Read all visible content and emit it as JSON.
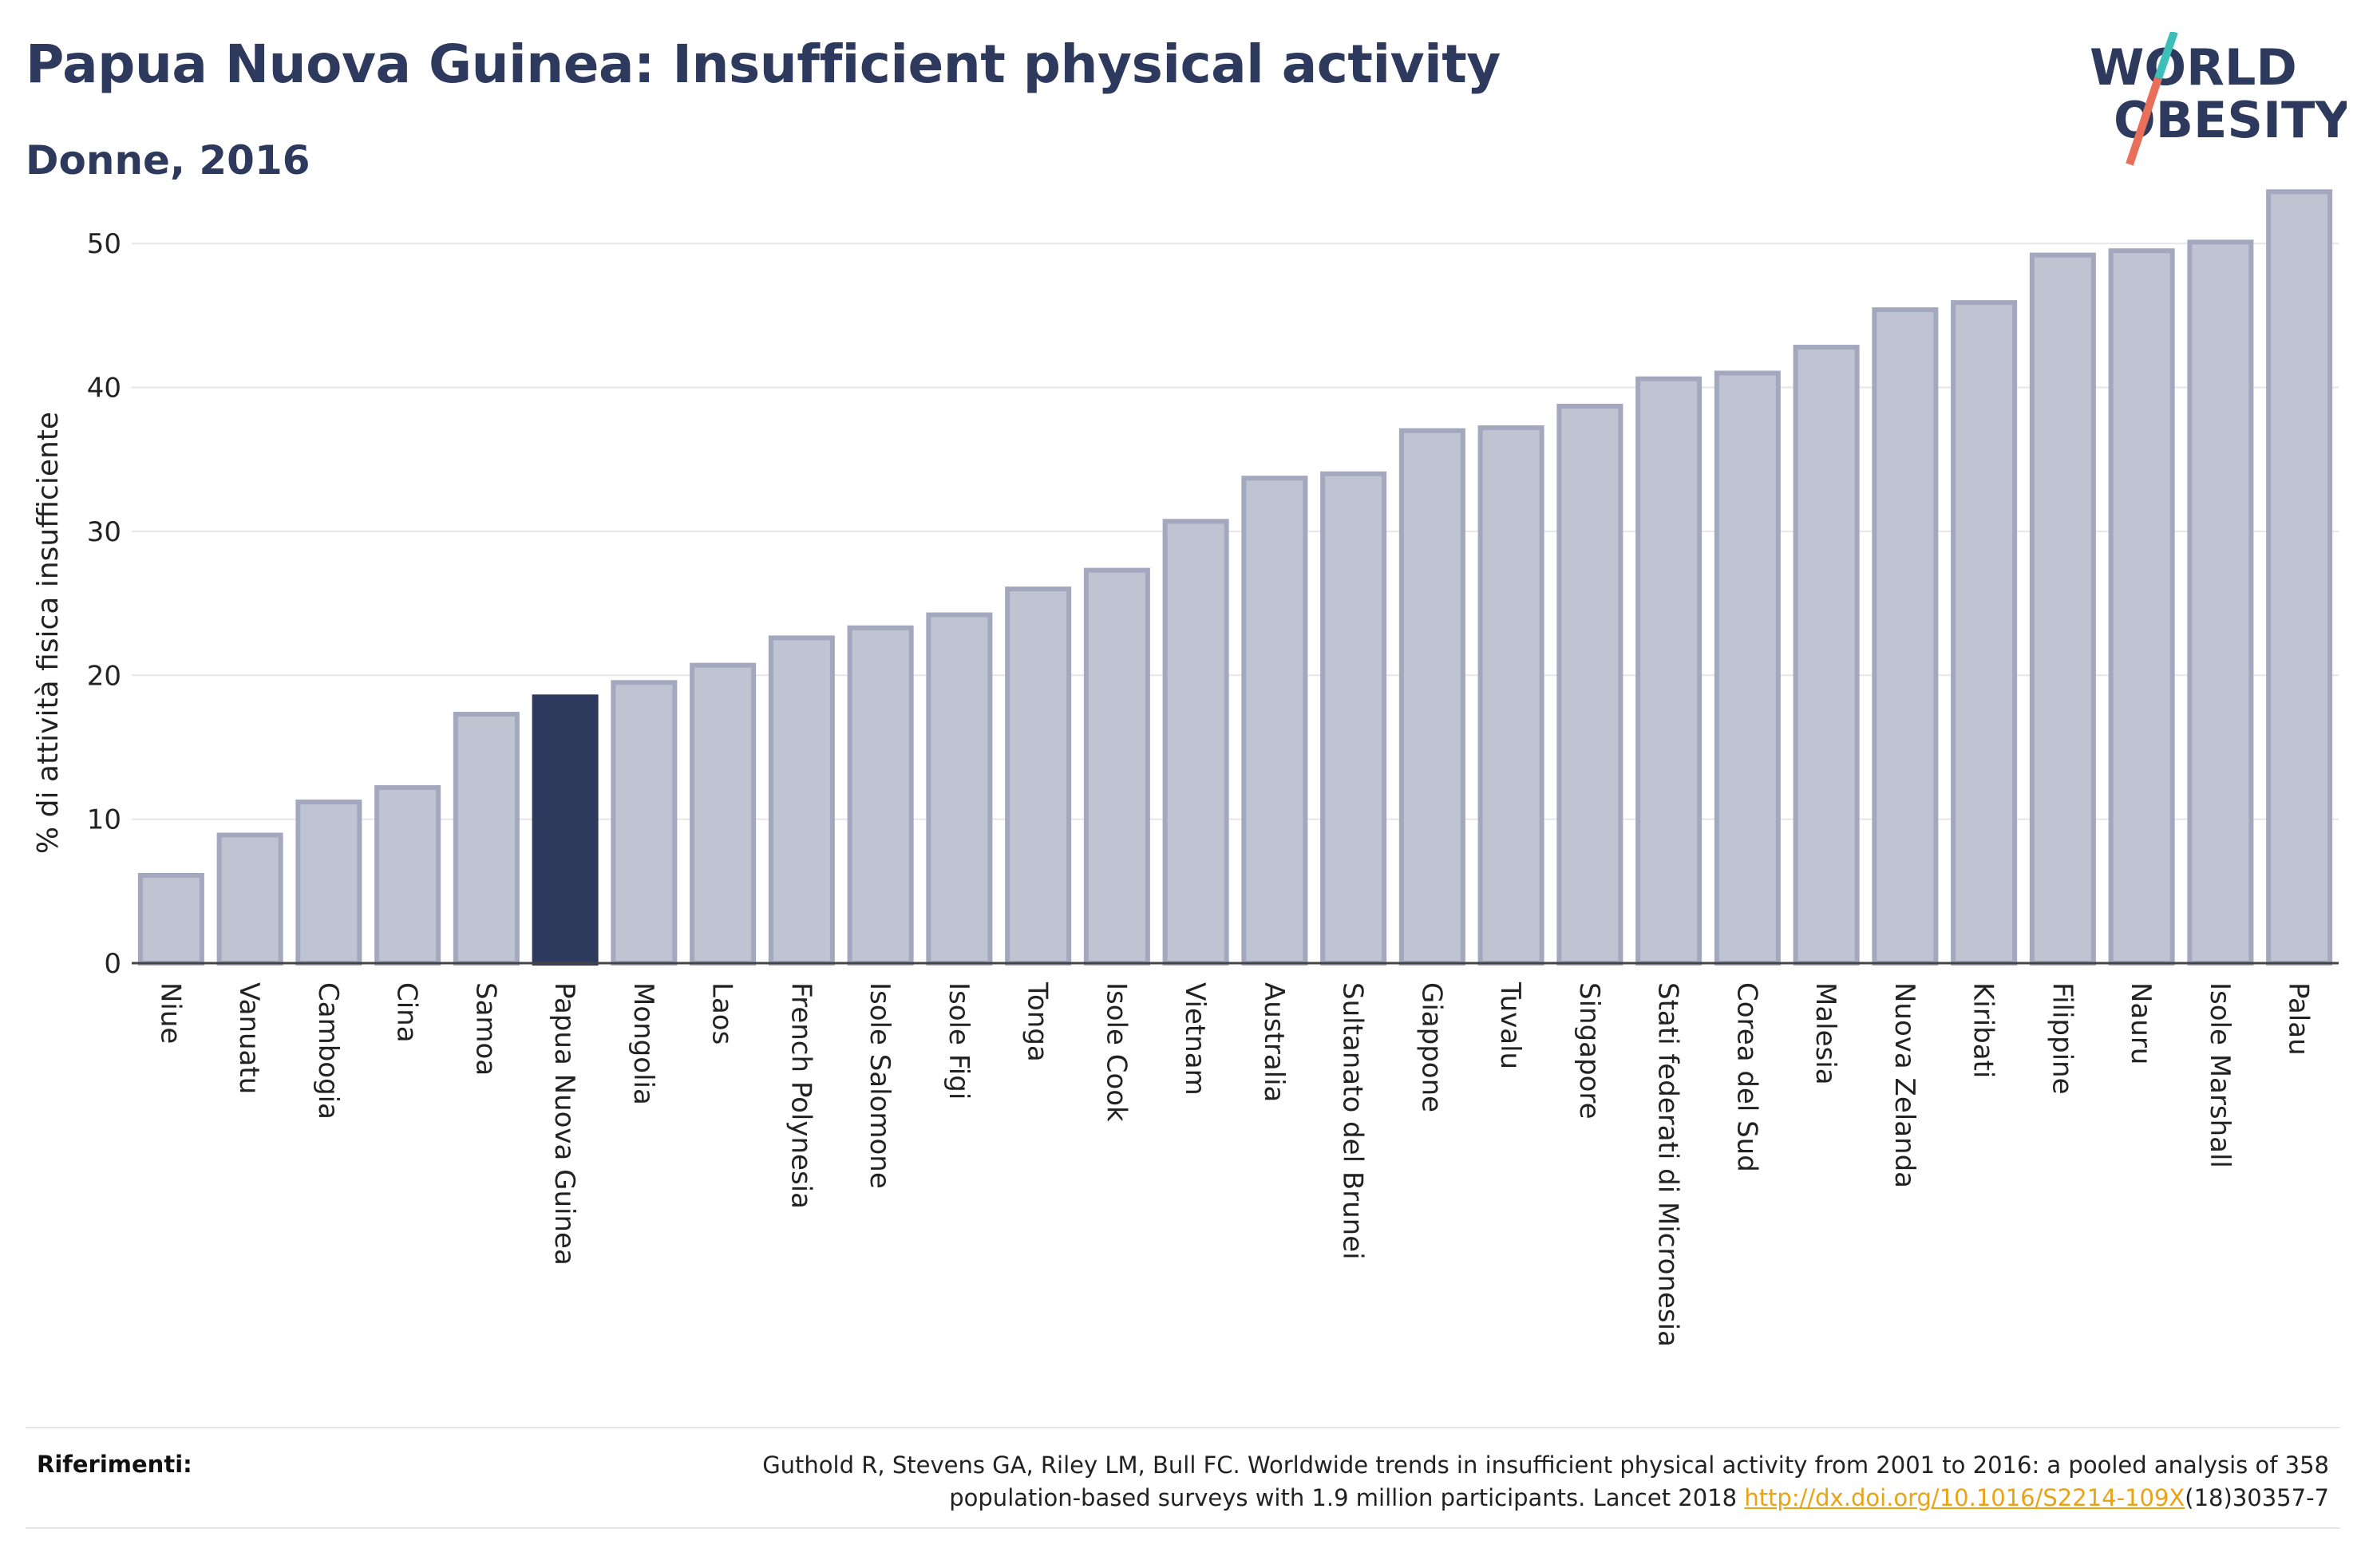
{
  "header": {
    "title": "Papua Nuova Guinea: Insufficient physical activity",
    "subtitle": "Donne, 2016"
  },
  "logo": {
    "line1": "WORLD",
    "line2": "OBESITY"
  },
  "colors": {
    "highlight": "#2d3a5e",
    "bar_fill": "#c0c3d1",
    "bar_stroke": "#a3a8bf",
    "grid": "#e6e6ea",
    "link": "#e8a317",
    "logo_teal": "#3bbfb8",
    "logo_coral": "#e8705a"
  },
  "chart_data": {
    "type": "bar",
    "ylabel": "% di attività fisica insufficiente",
    "xlabel": "",
    "ylim": [
      0,
      55
    ],
    "yticks": [
      0,
      10,
      20,
      30,
      40,
      50
    ],
    "grid": true,
    "highlight_category": "Papua Nuova Guinea",
    "categories": [
      "Niue",
      "Vanuatu",
      "Cambogia",
      "Cina",
      "Samoa",
      "Papua Nuova Guinea",
      "Mongolia",
      "Laos",
      "French Polynesia",
      "Isole Salomone",
      "Isole Figi",
      "Tonga",
      "Isole Cook",
      "Vietnam",
      "Australia",
      "Sultanato del Brunei",
      "Giappone",
      "Tuvalu",
      "Singapore",
      "Stati federati di Micronesia",
      "Corea del Sud",
      "Malesia",
      "Nuova Zelanda",
      "Kiribati",
      "Filippine",
      "Nauru",
      "Isole Marshall",
      "Palau"
    ],
    "values": [
      6.1,
      8.9,
      11.2,
      12.2,
      17.3,
      18.5,
      19.5,
      20.7,
      22.6,
      23.3,
      24.2,
      26.0,
      27.3,
      30.7,
      33.7,
      34.0,
      37.0,
      37.2,
      38.7,
      40.6,
      41.0,
      42.8,
      45.4,
      45.9,
      49.2,
      49.5,
      50.1,
      53.6
    ]
  },
  "references": {
    "label": "Riferimenti:",
    "text_line1": "Guthold R, Stevens GA, Riley LM, Bull FC. Worldwide trends in insufficient physical activity from 2001 to 2016: a pooled analysis of 358",
    "text_line2_pre": "population-based surveys with 1.9 million participants. Lancet 2018 ",
    "link_text": "http://dx.doi.org/10.1016/S2214-109X",
    "text_line2_post": "(18)30357-7"
  }
}
